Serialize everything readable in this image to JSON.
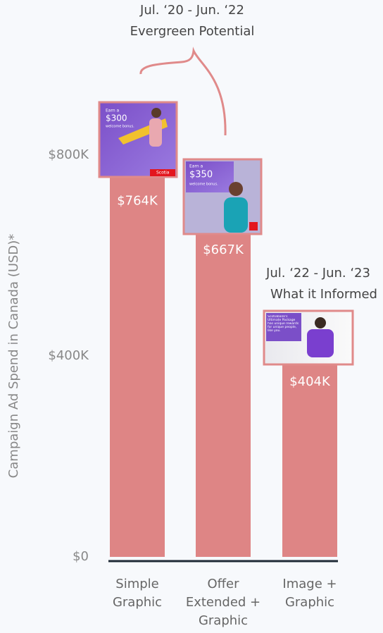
{
  "chart_data": {
    "type": "bar",
    "y_axis_label": "Campaign Ad Spend in Canada (USD)*",
    "categories": [
      "Simple Graphic",
      "Offer Extended + Graphic",
      "Image + Graphic"
    ],
    "values": [
      764000,
      667000,
      404000
    ],
    "value_labels": [
      "$764K",
      "$667K",
      "$404K"
    ],
    "color": "#de8585",
    "ylim": [
      0,
      800000
    ],
    "yticks": [
      {
        "value": 0,
        "label": "$0"
      },
      {
        "value": 400000,
        "label": "$400K"
      },
      {
        "value": 800000,
        "label": "$800K"
      }
    ],
    "grid": false,
    "annotations": [
      {
        "lines": [
          "Jul. ‘20 - Jun. ‘22",
          "Evergreen Potential"
        ]
      },
      {
        "lines": [
          "Jul. ‘22 - Jun. ‘23",
          "What it Informed"
        ]
      }
    ],
    "thumbnails": [
      {
        "texts": [
          "Earn a",
          "$300",
          "welcome bonus.",
          "Scotia"
        ]
      },
      {
        "texts": [
          "Earn a",
          "$350",
          "welcome bonus."
        ]
      },
      {
        "texts": [
          "Scotiabank's Ultimate Package has unique rewards for unique people, like you."
        ]
      }
    ]
  }
}
